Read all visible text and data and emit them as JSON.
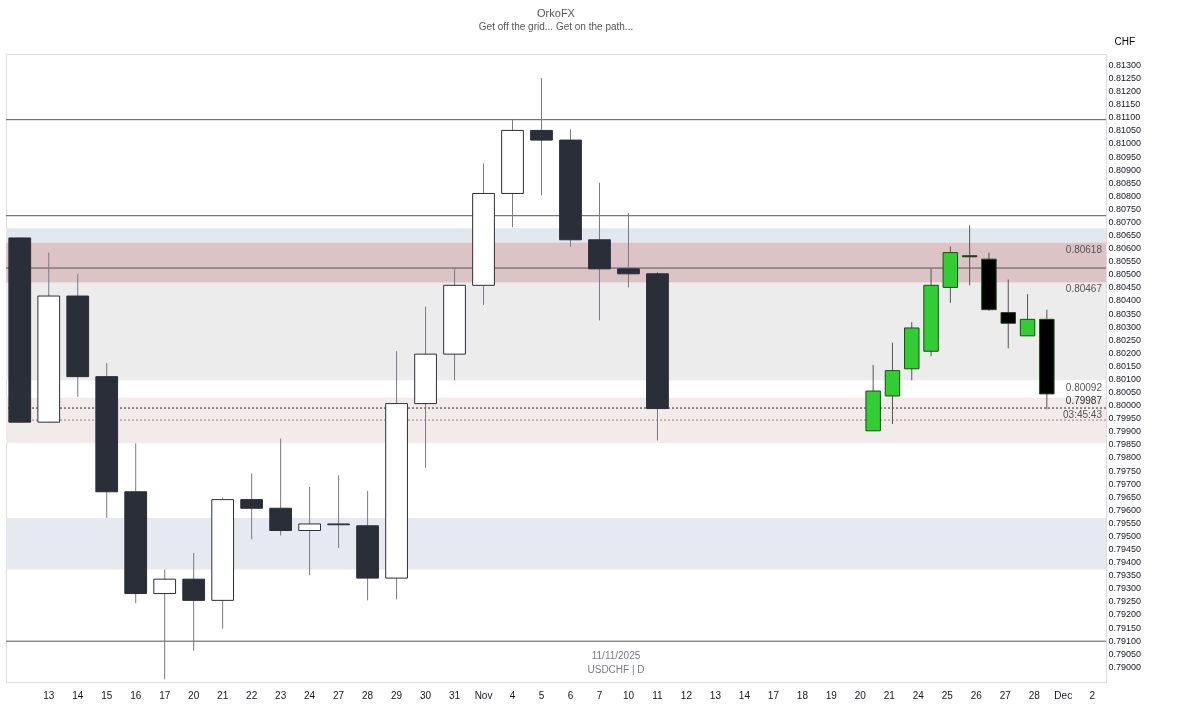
{
  "chart_data": [
    {
      "type": "candlestick",
      "title": "OrkoFX",
      "subtitle": "Get off the grid... Get on the path...",
      "ylabel": "CHF",
      "categories": [
        null,
        "13",
        "14",
        "15",
        "16",
        "17",
        "20",
        "21",
        "22",
        "23",
        "24",
        "27",
        "28",
        "29",
        "30",
        "31",
        "Nov",
        "4",
        "5",
        "6",
        "7",
        "10",
        "11",
        "12",
        "13",
        "14",
        "17",
        "18",
        "19",
        "20",
        "21",
        "24",
        "25",
        "26",
        "27",
        "28",
        "Dec",
        "2"
      ],
      "ohlc": [
        [
          0.80637,
          0.80637,
          0.79933,
          0.79933
        ],
        [
          0.79933,
          0.80581,
          0.79933,
          0.80415
        ],
        [
          0.80415,
          0.805,
          0.8003,
          0.80107
        ],
        [
          0.80107,
          0.80159,
          0.79567,
          0.79667
        ],
        [
          0.79667,
          0.79852,
          0.79241,
          0.79278
        ],
        [
          0.79278,
          0.7937,
          0.7895,
          0.79333
        ],
        [
          0.79333,
          0.79433,
          0.79059,
          0.79252
        ],
        [
          0.79252,
          0.79644,
          0.79144,
          0.79637
        ],
        [
          0.79637,
          0.79737,
          0.79485,
          0.79604
        ],
        [
          0.79604,
          0.7987,
          0.795,
          0.79519
        ],
        [
          0.79519,
          0.79685,
          0.79348,
          0.79544
        ],
        [
          0.79544,
          0.7973,
          0.79452,
          0.79541
        ],
        [
          0.79537,
          0.7967,
          0.79252,
          0.79337
        ],
        [
          0.79337,
          0.80204,
          0.79256,
          0.80004
        ],
        [
          0.80004,
          0.80374,
          0.79759,
          0.80193
        ],
        [
          0.80193,
          0.80522,
          0.80093,
          0.80456
        ],
        [
          0.80456,
          0.80922,
          0.80381,
          0.80807
        ],
        [
          0.80807,
          0.81089,
          0.80678,
          0.81048
        ],
        [
          0.81048,
          0.81248,
          0.808,
          0.81011
        ],
        [
          0.81011,
          0.81052,
          0.80604,
          0.8063
        ],
        [
          0.8063,
          0.80848,
          0.80322,
          0.80519
        ],
        [
          0.80519,
          0.80733,
          0.80448,
          0.805
        ],
        [
          0.805,
          0.80507,
          0.79863,
          0.79985
        ],
        null,
        null,
        null,
        null,
        null,
        null,
        null,
        null,
        null,
        null,
        null,
        null,
        null,
        null,
        null
      ],
      "colors": [
        "#2a2e39",
        "#ffffff",
        "#2a2e39",
        "#2a2e39",
        "#2a2e39",
        "#ffffff",
        "#2a2e39",
        "#ffffff",
        "#2a2e39",
        "#2a2e39",
        "#ffffff",
        "#2a2e39",
        "#2a2e39",
        "#ffffff",
        "#ffffff",
        "#ffffff",
        "#ffffff",
        "#ffffff",
        "#2a2e39",
        "#2a2e39",
        "#2a2e39",
        "#2a2e39",
        "#2a2e39",
        null,
        null,
        null,
        null,
        null,
        null,
        null,
        null,
        null,
        null,
        null,
        null,
        null,
        null,
        null
      ],
      "ylim": [
        0.7894,
        0.8134
      ],
      "yticks": [
        {
          "value": 0.813,
          "label": "0.81300"
        },
        {
          "value": 0.8125,
          "label": "0.81250"
        },
        {
          "value": 0.812,
          "label": "0.81200"
        },
        {
          "value": 0.8115,
          "label": "0.81150"
        },
        {
          "value": 0.811,
          "label": "0.81100"
        },
        {
          "value": 0.8105,
          "label": "0.81050"
        },
        {
          "value": 0.81,
          "label": "0.81000"
        },
        {
          "value": 0.8095,
          "label": "0.80950"
        },
        {
          "value": 0.809,
          "label": "0.80900"
        },
        {
          "value": 0.8085,
          "label": "0.80850"
        },
        {
          "value": 0.808,
          "label": "0.80800"
        },
        {
          "value": 0.8075,
          "label": "0.80750"
        },
        {
          "value": 0.807,
          "label": "0.80700"
        },
        {
          "value": 0.8065,
          "label": "0.80650"
        },
        {
          "value": 0.806,
          "label": "0.80600"
        },
        {
          "value": 0.8055,
          "label": "0.80550"
        },
        {
          "value": 0.805,
          "label": "0.80500"
        },
        {
          "value": 0.8045,
          "label": "0.80450"
        },
        {
          "value": 0.804,
          "label": "0.80400"
        },
        {
          "value": 0.8035,
          "label": "0.80350"
        },
        {
          "value": 0.803,
          "label": "0.80300"
        },
        {
          "value": 0.8025,
          "label": "0.80250"
        },
        {
          "value": 0.802,
          "label": "0.80200"
        },
        {
          "value": 0.8015,
          "label": "0.80150"
        },
        {
          "value": 0.801,
          "label": "0.80100"
        },
        {
          "value": 0.8005,
          "label": "0.80050"
        },
        {
          "value": 0.8,
          "label": "0.80000"
        },
        {
          "value": 0.7995,
          "label": "0.79950"
        },
        {
          "value": 0.799,
          "label": "0.79900"
        },
        {
          "value": 0.7985,
          "label": "0.79850"
        },
        {
          "value": 0.798,
          "label": "0.79800"
        },
        {
          "value": 0.7975,
          "label": "0.79750"
        },
        {
          "value": 0.797,
          "label": "0.79700"
        },
        {
          "value": 0.7965,
          "label": "0.79650"
        },
        {
          "value": 0.796,
          "label": "0.79600"
        },
        {
          "value": 0.7955,
          "label": "0.79550"
        },
        {
          "value": 0.795,
          "label": "0.79500"
        },
        {
          "value": 0.7945,
          "label": "0.79450"
        },
        {
          "value": 0.794,
          "label": "0.79400"
        },
        {
          "value": 0.7935,
          "label": "0.79350"
        },
        {
          "value": 0.793,
          "label": "0.79300"
        },
        {
          "value": 0.7925,
          "label": "0.79250"
        },
        {
          "value": 0.792,
          "label": "0.79200"
        },
        {
          "value": 0.7915,
          "label": "0.79150"
        },
        {
          "value": 0.791,
          "label": "0.79100"
        },
        {
          "value": 0.7905,
          "label": "0.79050"
        },
        {
          "value": 0.79,
          "label": "0.79000"
        }
      ],
      "bands": [
        {
          "axis": "y",
          "from": 0.80522,
          "to": 0.80674,
          "color": "#e3e8ef"
        },
        {
          "axis": "y",
          "from": 0.79852,
          "to": 0.80026,
          "color": "#f3eaea"
        },
        {
          "axis": "y",
          "from": 0.7937,
          "to": 0.79567,
          "color": "#e6e9ef"
        },
        {
          "axis": "y",
          "from": 0.80093,
          "to": 0.80467,
          "color": "#ececec"
        },
        {
          "axis": "y",
          "from": 0.80467,
          "to": 0.80619,
          "color": "#dcc3c6"
        }
      ],
      "ref_lines": [
        {
          "axis": "y",
          "value": 0.80722,
          "color": "#555555",
          "line_style": "solid"
        },
        {
          "axis": "y",
          "value": 0.79096,
          "color": "#555555",
          "line_style": "solid"
        },
        {
          "axis": "y",
          "value": 0.81089,
          "color": "#555555",
          "line_style": "solid"
        },
        {
          "axis": "y",
          "value": 0.80522,
          "color": "#555555",
          "line_style": "solid"
        },
        {
          "axis": "y",
          "value": 0.79941,
          "color": "#888888",
          "line_style": "dotted"
        },
        {
          "axis": "y",
          "value": 0.79987,
          "label": "0.79987",
          "color": "#2a2e39",
          "line_style": "dotted"
        }
      ],
      "annotations": [
        {
          "text": "0.80618",
          "y": 0.80618
        },
        {
          "text": "0.80467",
          "y": 0.80467
        },
        {
          "text": "0.80092",
          "y": 0.80092
        },
        {
          "text": "03:45:43",
          "y": 0.79987
        },
        "11/11/2025",
        "USDCHF | D"
      ]
    },
    {
      "type": "candlestick",
      "categories": [
        null,
        null,
        null,
        null,
        null,
        null,
        null,
        null,
        null,
        null
      ],
      "ohlc": [
        [
          0.799,
          0.80152,
          0.799,
          0.80052
        ],
        [
          0.80033,
          0.80237,
          0.79926,
          0.8013
        ],
        [
          0.80137,
          0.80315,
          0.80093,
          0.80293
        ],
        [
          0.80204,
          0.80519,
          0.80185,
          0.80456
        ],
        [
          0.80448,
          0.80604,
          0.80389,
          0.80581
        ],
        [
          0.80569,
          0.80685,
          0.80456,
          0.80565
        ],
        [
          0.80556,
          0.80581,
          0.80359,
          0.80363
        ],
        [
          0.80352,
          0.80478,
          0.80215,
          0.80311
        ],
        [
          0.80263,
          0.80422,
          0.80263,
          0.80326
        ],
        [
          0.80326,
          0.80363,
          0.79982,
          0.80041
        ]
      ],
      "colors": [
        "#32cd32",
        "#32cd32",
        "#32cd32",
        "#32cd32",
        "#32cd32",
        "#000000",
        "#000000",
        "#000000",
        "#32cd32",
        "#000000"
      ],
      "ylim": [
        0.7894,
        0.8134
      ],
      "tick_labels": false
    }
  ]
}
